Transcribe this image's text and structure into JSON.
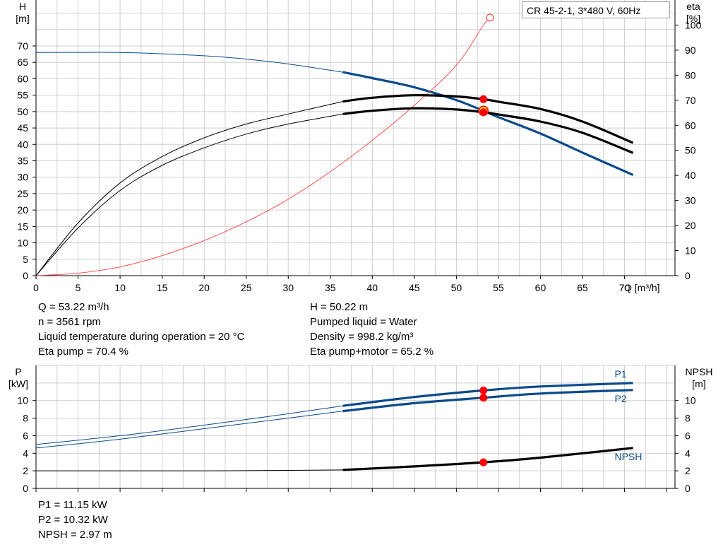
{
  "chart_data": [
    {
      "type": "line",
      "title": "CR 45-2-1, 3*480 V, 60Hz",
      "xlabel": "Q [m³/h]",
      "ylabel_left": [
        "H",
        "[m]"
      ],
      "ylabel_right": [
        "eta",
        "[%]"
      ],
      "xlim": [
        0,
        76
      ],
      "ylim_left": [
        0,
        84
      ],
      "ylim_right": [
        0,
        110
      ],
      "x_ticks": [
        "0",
        "5",
        "10",
        "15",
        "20",
        "25",
        "30",
        "35",
        "40",
        "45",
        "50",
        "55",
        "60",
        "65",
        "70"
      ],
      "y_left_ticks": [
        "0",
        "5",
        "10",
        "15",
        "20",
        "25",
        "30",
        "35",
        "40",
        "45",
        "50",
        "55",
        "60",
        "65",
        "70"
      ],
      "y_right_ticks": [
        "0",
        "10",
        "20",
        "30",
        "40",
        "50",
        "60",
        "70",
        "80",
        "90",
        "100"
      ],
      "grid": true,
      "series": [
        {
          "axis": "left",
          "x": [
            0,
            5,
            10,
            15,
            20,
            25,
            30,
            36.5,
            40,
            45,
            50,
            53.22,
            55,
            60,
            65,
            71
          ],
          "y": [
            68,
            68.05,
            68,
            67.6,
            67,
            66,
            64.5,
            62,
            60.2,
            57.4,
            53.5,
            50.22,
            48.3,
            43.3,
            37.5,
            30.7
          ],
          "bold_from": 36.5,
          "color": "#0a4a8c"
        },
        {
          "axis": "right",
          "x": [
            0,
            5,
            10,
            15,
            20,
            25,
            30,
            35,
            40,
            45,
            50,
            53.22,
            54
          ],
          "y": [
            0,
            1,
            3.5,
            8,
            14,
            21.5,
            30.5,
            41.5,
            54,
            68,
            84,
            100,
            103
          ],
          "color": "#ff5050"
        },
        {
          "axis": "right",
          "x": [
            0,
            5,
            10,
            15,
            20,
            25,
            30,
            36.5,
            40,
            45,
            50,
            53.22,
            55,
            60,
            65,
            71
          ],
          "y": [
            0,
            21,
            37,
            47.5,
            55,
            60.5,
            64.5,
            69.5,
            71,
            72,
            71.5,
            70.4,
            69.4,
            66.5,
            61.5,
            53
          ],
          "bold_from": 36.5,
          "color": "#000000"
        },
        {
          "axis": "right",
          "x": [
            0,
            5,
            10,
            15,
            20,
            25,
            30,
            36.5,
            40,
            45,
            50,
            53.22,
            55,
            60,
            65,
            71
          ],
          "y": [
            0,
            19,
            34,
            44,
            51,
            56.5,
            60.5,
            64.5,
            65.8,
            66.8,
            66.3,
            65.2,
            64.3,
            61.5,
            57,
            49
          ],
          "bold_from": 36.5,
          "color": "#000000"
        }
      ],
      "operating_points": [
        {
          "axis": "left",
          "x": 53.22,
          "y": 50.22
        },
        {
          "axis": "right",
          "x": 53.22,
          "y": 70.4
        },
        {
          "axis": "right",
          "x": 53.22,
          "y": 65.2
        }
      ],
      "target_point": {
        "axis": "right",
        "x": 54,
        "y": 103
      }
    },
    {
      "type": "line",
      "xlim": [
        0,
        76
      ],
      "ylim_left": [
        0,
        14
      ],
      "ylim_right": [
        0,
        14
      ],
      "ylabel_left": [
        "P",
        "[kW]"
      ],
      "ylabel_right": [
        "NPSH",
        "[m]"
      ],
      "y_left_ticks": [
        "0",
        "2",
        "4",
        "6",
        "8",
        "10"
      ],
      "y_right_ticks": [
        "0",
        "2",
        "4",
        "6",
        "8",
        "10"
      ],
      "grid": true,
      "series": [
        {
          "name": "P1",
          "axis": "left",
          "x": [
            0,
            10,
            20,
            30,
            36.5,
            45,
            53.22,
            60,
            71
          ],
          "y": [
            5.0,
            6.0,
            7.2,
            8.5,
            9.4,
            10.4,
            11.15,
            11.6,
            12.0
          ],
          "bold_from": 36.5,
          "color": "#0a4a8c"
        },
        {
          "name": "P2",
          "axis": "left",
          "x": [
            0,
            10,
            20,
            30,
            36.5,
            45,
            53.22,
            60,
            71
          ],
          "y": [
            4.6,
            5.6,
            6.8,
            8.0,
            8.8,
            9.7,
            10.32,
            10.8,
            11.2
          ],
          "bold_from": 36.5,
          "color": "#0a4a8c"
        },
        {
          "name": "NPSH",
          "axis": "right",
          "x": [
            0,
            10,
            20,
            30,
            36.5,
            45,
            53.22,
            60,
            71
          ],
          "y": [
            2.0,
            2.0,
            2.0,
            2.05,
            2.1,
            2.5,
            2.97,
            3.5,
            4.6
          ],
          "bold_from": 36.5,
          "color": "#000000"
        }
      ],
      "operating_points": [
        {
          "axis": "left",
          "x": 53.22,
          "y": 11.15
        },
        {
          "axis": "left",
          "x": 53.22,
          "y": 10.32
        },
        {
          "axis": "right",
          "x": 53.22,
          "y": 2.97
        }
      ]
    }
  ],
  "results": {
    "left": [
      "Q = 53.22 m³/h",
      "n = 3561 rpm",
      "Liquid temperature during operation = 20 °C",
      "Eta pump = 70.4 %"
    ],
    "right": [
      "H = 50.22 m",
      "Pumped liquid = Water",
      "Density = 998.2 kg/m³",
      "Eta pump+motor = 65.2 %"
    ],
    "power": [
      "P1 = 11.15 kW",
      "P2 = 10.32 kW",
      "NPSH = 2.97 m"
    ]
  }
}
